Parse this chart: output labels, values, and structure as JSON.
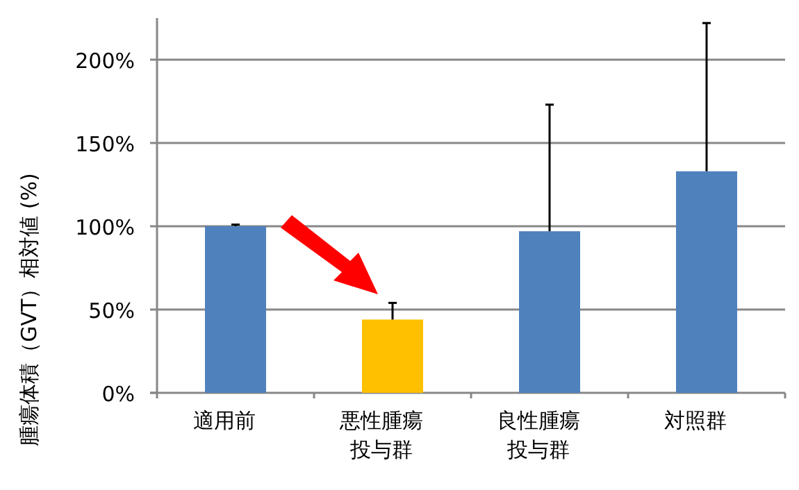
{
  "chart_data": {
    "type": "bar",
    "ylabel": "腫瘍体積（GVT）相対値 (%)",
    "categories": [
      "適用前",
      "悪性腫瘍投与群",
      "良性腫瘍投与群",
      "対照群"
    ],
    "values": [
      100,
      44,
      97,
      133
    ],
    "colors": [
      "#4f81bd",
      "#ffc000",
      "#4f81bd",
      "#4f81bd"
    ],
    "errors": [
      [
        100,
        101
      ],
      [
        44,
        54
      ],
      [
        97,
        173
      ],
      [
        133,
        222
      ]
    ],
    "ylim": [
      0,
      225
    ],
    "yticks": [
      {
        "value": 0,
        "label": "0%"
      },
      {
        "value": 50,
        "label": "50%"
      },
      {
        "value": 100,
        "label": "100%"
      },
      {
        "value": 150,
        "label": "150%"
      },
      {
        "value": 200,
        "label": "200%"
      }
    ],
    "grid": "y"
  }
}
